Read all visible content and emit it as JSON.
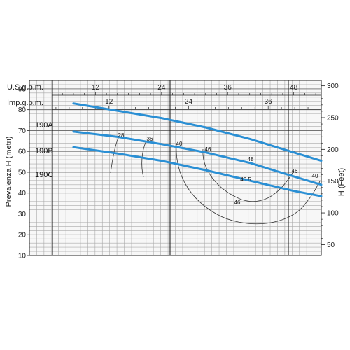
{
  "chart_data": {
    "type": "line",
    "top_axes": [
      {
        "label": "U.S.g.p.m.",
        "ticks": [
          12,
          24,
          36,
          48
        ],
        "range": [
          0,
          53
        ]
      },
      {
        "label": "Imp.g.p.m.",
        "ticks": [
          12,
          24,
          36
        ],
        "range": [
          0,
          44
        ]
      }
    ],
    "ylabel": "Prevalenza H (metri)",
    "ylim": [
      10,
      94
    ],
    "yticks": [
      10,
      20,
      30,
      40,
      50,
      60,
      70,
      80,
      90
    ],
    "ylabel_right": "H (Feet)",
    "yticks_right": [
      50,
      100,
      150,
      200,
      250,
      300
    ],
    "grid": true,
    "series": [
      {
        "name": "190A",
        "color": "#2a8fd4",
        "x": [
          0,
          8,
          16,
          24,
          32,
          40,
          48,
          53
        ],
        "y": [
          85.5,
          83,
          79.5,
          76,
          71.5,
          66,
          59.5,
          55.5
        ]
      },
      {
        "name": "190B",
        "color": "#2a8fd4",
        "x": [
          0,
          8,
          16,
          24,
          32,
          40,
          48,
          53
        ],
        "y": [
          70.5,
          69.5,
          67,
          63.5,
          59.5,
          54.5,
          48,
          44
        ]
      },
      {
        "name": "190C",
        "color": "#2a8fd4",
        "x": [
          0,
          8,
          16,
          24,
          32,
          40,
          48,
          53
        ],
        "y": [
          63.5,
          62,
          59,
          55.5,
          51,
          46,
          41,
          38.5
        ]
      }
    ],
    "efficiency_labels": [
      "28",
      "36",
      "40",
      "46",
      "48",
      "46",
      "40",
      "46.5",
      "46"
    ]
  }
}
